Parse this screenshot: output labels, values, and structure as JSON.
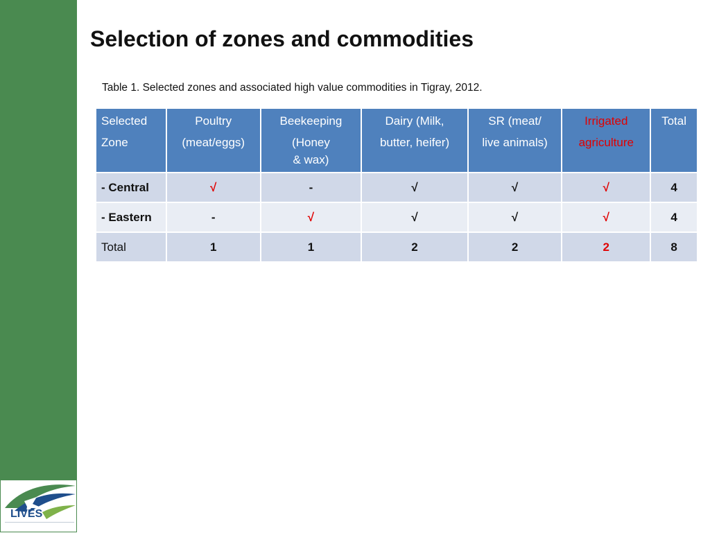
{
  "title": "Selection of zones and commodities",
  "caption": "Table 1. Selected zones and associated high value commodities in Tigray, 2012.",
  "logo": {
    "text": "LIVES"
  },
  "colors": {
    "sidebar": "#4a8a50",
    "header": "#4f81bd",
    "row_dark": "#d0d8e8",
    "row_light": "#e9edf4",
    "highlight_red": "#e00000"
  },
  "table": {
    "headers": [
      [
        "Selected",
        "Zone"
      ],
      [
        "Poultry",
        "(meat/eggs)"
      ],
      [
        "Beekeeping",
        "(Honey",
        "& wax)"
      ],
      [
        "Dairy (Milk,",
        "butter, heifer)"
      ],
      [
        "SR (meat/",
        "live animals)"
      ],
      [
        "Irrigated",
        "agriculture"
      ],
      [
        "Total"
      ]
    ],
    "rows": [
      [
        "- Central",
        "√",
        "-",
        "√",
        "√",
        "√",
        "4"
      ],
      [
        "- Eastern",
        "-",
        "√",
        "√",
        "√",
        "√",
        "4"
      ],
      [
        "Total",
        "1",
        "1",
        "2",
        "2",
        "2",
        "8"
      ]
    ]
  }
}
